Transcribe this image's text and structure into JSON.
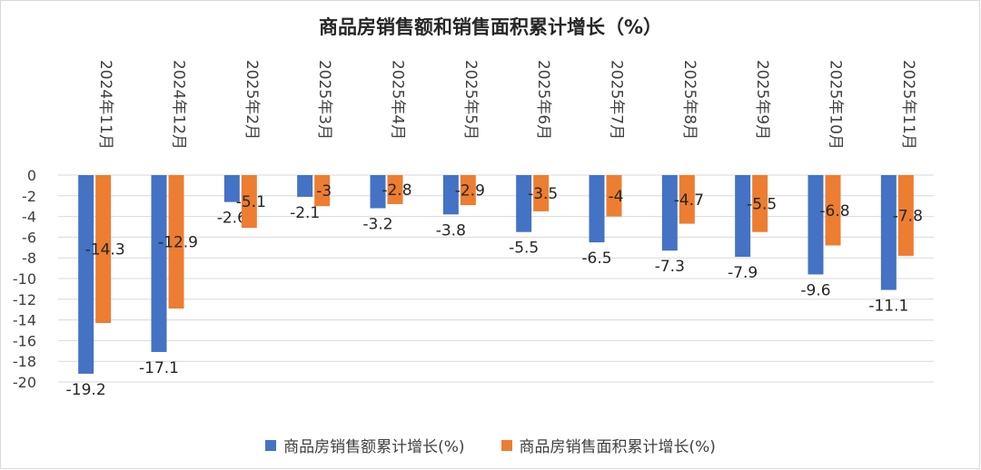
{
  "chart_data": {
    "type": "bar",
    "title": "商品房销售额和销售面积累计增长（%）",
    "categories": [
      "2024年11月",
      "2024年12月",
      "2025年2月",
      "2025年3月",
      "2025年4月",
      "2025年5月",
      "2025年6月",
      "2025年7月",
      "2025年8月",
      "2025年9月",
      "2025年10月",
      "2025年11月"
    ],
    "series": [
      {
        "name": "商品房销售额累计增长(%)",
        "color": "#4472C4",
        "values": [
          -19.2,
          -17.1,
          -2.6,
          -2.1,
          -3.2,
          -3.8,
          -5.5,
          -6.5,
          -7.3,
          -7.9,
          -9.6,
          -11.1
        ],
        "labels": [
          "-19.2",
          "-17.1",
          "-2.6",
          "-2.1",
          "-3.2",
          "-3.8",
          "-5.5",
          "-6.5",
          "-7.3",
          "-7.9",
          "-9.6",
          "-11.1"
        ]
      },
      {
        "name": "商品房销售面积累计增长(%)",
        "color": "#ED7D31",
        "values": [
          -14.3,
          -12.9,
          -5.1,
          -3,
          -2.8,
          -2.9,
          -3.5,
          -4,
          -4.7,
          -5.5,
          -6.8,
          -7.8
        ],
        "labels": [
          "-14.3",
          "-12.9",
          "-5.1",
          "-3",
          "-2.8",
          "-2.9",
          "-3.5",
          "-4",
          "-4.7",
          "-5.5",
          "-6.8",
          "-7.8"
        ]
      }
    ],
    "ylim": [
      -20,
      0
    ],
    "yticks": [
      0,
      -2,
      -4,
      -6,
      -8,
      -10,
      -12,
      -14,
      -16,
      -18,
      -20
    ],
    "grid": true,
    "xlabel": "",
    "ylabel": "",
    "legend": "bottom"
  }
}
